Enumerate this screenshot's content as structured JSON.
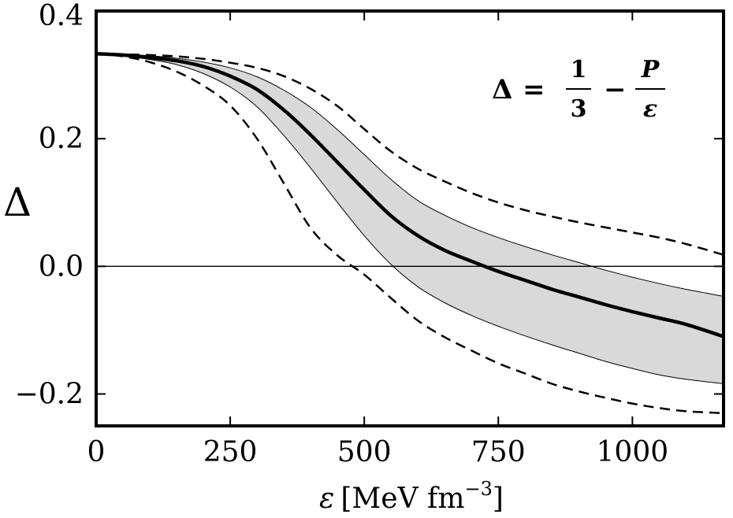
{
  "chart_data": {
    "type": "line",
    "title": "",
    "xlabel": {
      "symbol": "ε",
      "unit_open": "[MeV fm",
      "unit_exp": "−3",
      "unit_close": "]"
    },
    "ylabel": "Δ",
    "xlim": [
      0,
      1170
    ],
    "ylim": [
      -0.25,
      0.4
    ],
    "xticks": [
      0,
      250,
      500,
      750,
      1000
    ],
    "xtick_labels": [
      "0",
      "250",
      "500",
      "750",
      "1000"
    ],
    "yticks": [
      -0.2,
      0.0,
      0.2,
      0.4
    ],
    "ytick_labels": [
      "−0.2",
      "0.0",
      "0.2",
      "0.4"
    ],
    "x": [
      0,
      50,
      100,
      150,
      200,
      250,
      300,
      350,
      400,
      450,
      500,
      550,
      600,
      650,
      700,
      750,
      800,
      850,
      900,
      950,
      1000,
      1050,
      1100,
      1170
    ],
    "series": [
      {
        "name": "central",
        "style": "solid-thick",
        "values": [
          0.333,
          0.331,
          0.327,
          0.322,
          0.313,
          0.298,
          0.277,
          0.245,
          0.206,
          0.163,
          0.12,
          0.079,
          0.048,
          0.025,
          0.008,
          -0.008,
          -0.022,
          -0.036,
          -0.048,
          -0.06,
          -0.071,
          -0.081,
          -0.091,
          -0.11
        ]
      },
      {
        "name": "band upper",
        "style": "band-edge",
        "values": [
          0.333,
          0.332,
          0.33,
          0.326,
          0.32,
          0.311,
          0.297,
          0.276,
          0.249,
          0.214,
          0.175,
          0.136,
          0.103,
          0.08,
          0.061,
          0.045,
          0.031,
          0.018,
          0.006,
          -0.006,
          -0.017,
          -0.027,
          -0.036,
          -0.047
        ]
      },
      {
        "name": "band lower",
        "style": "band-edge",
        "values": [
          0.333,
          0.33,
          0.324,
          0.316,
          0.302,
          0.281,
          0.25,
          0.205,
          0.154,
          0.1,
          0.048,
          0.003,
          -0.032,
          -0.057,
          -0.077,
          -0.094,
          -0.109,
          -0.123,
          -0.136,
          -0.149,
          -0.16,
          -0.17,
          -0.177,
          -0.184
        ]
      },
      {
        "name": "dashed upper",
        "style": "dashed",
        "values": [
          0.333,
          0.332,
          0.331,
          0.329,
          0.325,
          0.319,
          0.311,
          0.298,
          0.278,
          0.251,
          0.215,
          0.18,
          0.153,
          0.133,
          0.115,
          0.1,
          0.088,
          0.078,
          0.069,
          0.061,
          0.053,
          0.045,
          0.035,
          0.018
        ]
      },
      {
        "name": "dashed lower",
        "style": "dashed",
        "values": [
          0.333,
          0.329,
          0.32,
          0.305,
          0.283,
          0.252,
          0.2,
          0.13,
          0.06,
          0.017,
          -0.013,
          -0.05,
          -0.085,
          -0.111,
          -0.132,
          -0.152,
          -0.168,
          -0.184,
          -0.196,
          -0.206,
          -0.215,
          -0.222,
          -0.227,
          -0.23
        ]
      }
    ],
    "reference_line": {
      "y": 0.0,
      "style": "thin-solid"
    },
    "band_between": [
      "band upper",
      "band lower"
    ],
    "band_color": "#d9d9d9",
    "line_color": "#000000",
    "annotation": {
      "lhs": "Δ",
      "equals": "=",
      "frac1_num": "1",
      "frac1_den": "3",
      "minus": "−",
      "frac2_num": "P",
      "frac2_den": "ε",
      "placement": "top-right"
    }
  }
}
